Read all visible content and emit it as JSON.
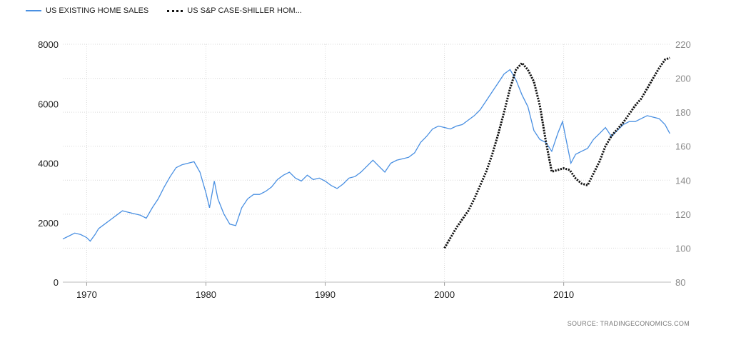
{
  "legend": {
    "series1": "US EXISTING HOME SALES",
    "series2": "US S&P CASE-SHILLER HOM..."
  },
  "source": "SOURCE:  TRADINGECONOMICS.COM",
  "colors": {
    "sales": "#4a90e2",
    "caseshiller": "#111111",
    "grid": "#d9d9d9"
  },
  "chart_data": {
    "type": "line",
    "x_ticks": [
      "1970",
      "1980",
      "1990",
      "2000",
      "2010"
    ],
    "xlim": [
      1968,
      2019
    ],
    "y_left": {
      "ticks": [
        "0",
        "2000",
        "4000",
        "6000",
        "8000"
      ],
      "lim": [
        0,
        8000
      ]
    },
    "y_right": {
      "ticks": [
        "80",
        "100",
        "120",
        "140",
        "160",
        "180",
        "200",
        "220"
      ],
      "lim": [
        80,
        220
      ]
    },
    "grid": "dotted",
    "legend_position": "top-left",
    "series": [
      {
        "name": "US EXISTING HOME SALES",
        "axis": "left",
        "points": [
          [
            1968.0,
            1450
          ],
          [
            1968.5,
            1550
          ],
          [
            1969.0,
            1650
          ],
          [
            1969.5,
            1600
          ],
          [
            1970.0,
            1500
          ],
          [
            1970.3,
            1380
          ],
          [
            1970.7,
            1600
          ],
          [
            1971.0,
            1800
          ],
          [
            1971.5,
            1950
          ],
          [
            1972.0,
            2100
          ],
          [
            1972.5,
            2250
          ],
          [
            1973.0,
            2400
          ],
          [
            1973.5,
            2350
          ],
          [
            1974.0,
            2300
          ],
          [
            1974.5,
            2250
          ],
          [
            1975.0,
            2150
          ],
          [
            1975.5,
            2500
          ],
          [
            1976.0,
            2800
          ],
          [
            1976.5,
            3200
          ],
          [
            1977.0,
            3550
          ],
          [
            1977.5,
            3850
          ],
          [
            1978.0,
            3950
          ],
          [
            1978.5,
            4000
          ],
          [
            1979.0,
            4050
          ],
          [
            1979.5,
            3700
          ],
          [
            1980.0,
            3000
          ],
          [
            1980.3,
            2500
          ],
          [
            1980.7,
            3400
          ],
          [
            1981.0,
            2800
          ],
          [
            1981.5,
            2300
          ],
          [
            1982.0,
            1950
          ],
          [
            1982.5,
            1900
          ],
          [
            1983.0,
            2500
          ],
          [
            1983.5,
            2800
          ],
          [
            1984.0,
            2950
          ],
          [
            1984.5,
            2950
          ],
          [
            1985.0,
            3050
          ],
          [
            1985.5,
            3200
          ],
          [
            1986.0,
            3450
          ],
          [
            1986.5,
            3600
          ],
          [
            1987.0,
            3700
          ],
          [
            1987.5,
            3500
          ],
          [
            1988.0,
            3400
          ],
          [
            1988.5,
            3600
          ],
          [
            1989.0,
            3450
          ],
          [
            1989.5,
            3500
          ],
          [
            1990.0,
            3400
          ],
          [
            1990.5,
            3250
          ],
          [
            1991.0,
            3150
          ],
          [
            1991.5,
            3300
          ],
          [
            1992.0,
            3500
          ],
          [
            1992.5,
            3550
          ],
          [
            1993.0,
            3700
          ],
          [
            1993.5,
            3900
          ],
          [
            1994.0,
            4100
          ],
          [
            1994.5,
            3900
          ],
          [
            1995.0,
            3700
          ],
          [
            1995.5,
            4000
          ],
          [
            1996.0,
            4100
          ],
          [
            1996.5,
            4150
          ],
          [
            1997.0,
            4200
          ],
          [
            1997.5,
            4350
          ],
          [
            1998.0,
            4700
          ],
          [
            1998.5,
            4900
          ],
          [
            1999.0,
            5150
          ],
          [
            1999.5,
            5250
          ],
          [
            2000.0,
            5200
          ],
          [
            2000.5,
            5150
          ],
          [
            2001.0,
            5250
          ],
          [
            2001.5,
            5300
          ],
          [
            2002.0,
            5450
          ],
          [
            2002.5,
            5600
          ],
          [
            2003.0,
            5800
          ],
          [
            2003.5,
            6100
          ],
          [
            2004.0,
            6400
          ],
          [
            2004.5,
            6700
          ],
          [
            2005.0,
            7000
          ],
          [
            2005.5,
            7150
          ],
          [
            2006.0,
            6800
          ],
          [
            2006.5,
            6300
          ],
          [
            2007.0,
            5900
          ],
          [
            2007.5,
            5100
          ],
          [
            2008.0,
            4800
          ],
          [
            2008.5,
            4700
          ],
          [
            2009.0,
            4400
          ],
          [
            2009.5,
            5000
          ],
          [
            2009.9,
            5400
          ],
          [
            2010.2,
            4800
          ],
          [
            2010.6,
            4000
          ],
          [
            2011.0,
            4300
          ],
          [
            2011.5,
            4400
          ],
          [
            2012.0,
            4500
          ],
          [
            2012.5,
            4800
          ],
          [
            2013.0,
            5000
          ],
          [
            2013.5,
            5200
          ],
          [
            2014.0,
            4900
          ],
          [
            2014.5,
            5100
          ],
          [
            2015.0,
            5300
          ],
          [
            2015.5,
            5400
          ],
          [
            2016.0,
            5400
          ],
          [
            2016.5,
            5500
          ],
          [
            2017.0,
            5600
          ],
          [
            2017.5,
            5550
          ],
          [
            2018.0,
            5500
          ],
          [
            2018.5,
            5300
          ],
          [
            2018.9,
            5000
          ]
        ]
      },
      {
        "name": "US S&P CASE-SHILLER HOM...",
        "axis": "right",
        "points": [
          [
            2000.0,
            100
          ],
          [
            2000.5,
            106
          ],
          [
            2001.0,
            112
          ],
          [
            2001.5,
            117
          ],
          [
            2002.0,
            122
          ],
          [
            2002.5,
            129
          ],
          [
            2003.0,
            137
          ],
          [
            2003.5,
            145
          ],
          [
            2004.0,
            155
          ],
          [
            2004.5,
            167
          ],
          [
            2005.0,
            180
          ],
          [
            2005.5,
            194
          ],
          [
            2006.0,
            205
          ],
          [
            2006.5,
            209
          ],
          [
            2007.0,
            205
          ],
          [
            2007.5,
            198
          ],
          [
            2008.0,
            184
          ],
          [
            2008.5,
            163
          ],
          [
            2009.0,
            145
          ],
          [
            2009.5,
            146
          ],
          [
            2010.0,
            147
          ],
          [
            2010.5,
            146
          ],
          [
            2011.0,
            141
          ],
          [
            2011.5,
            138
          ],
          [
            2012.0,
            137
          ],
          [
            2012.5,
            144
          ],
          [
            2013.0,
            151
          ],
          [
            2013.5,
            160
          ],
          [
            2014.0,
            166
          ],
          [
            2014.5,
            170
          ],
          [
            2015.0,
            174
          ],
          [
            2015.5,
            179
          ],
          [
            2016.0,
            184
          ],
          [
            2016.5,
            188
          ],
          [
            2017.0,
            194
          ],
          [
            2017.5,
            200
          ],
          [
            2018.0,
            206
          ],
          [
            2018.5,
            211
          ],
          [
            2018.9,
            212
          ]
        ]
      }
    ]
  }
}
